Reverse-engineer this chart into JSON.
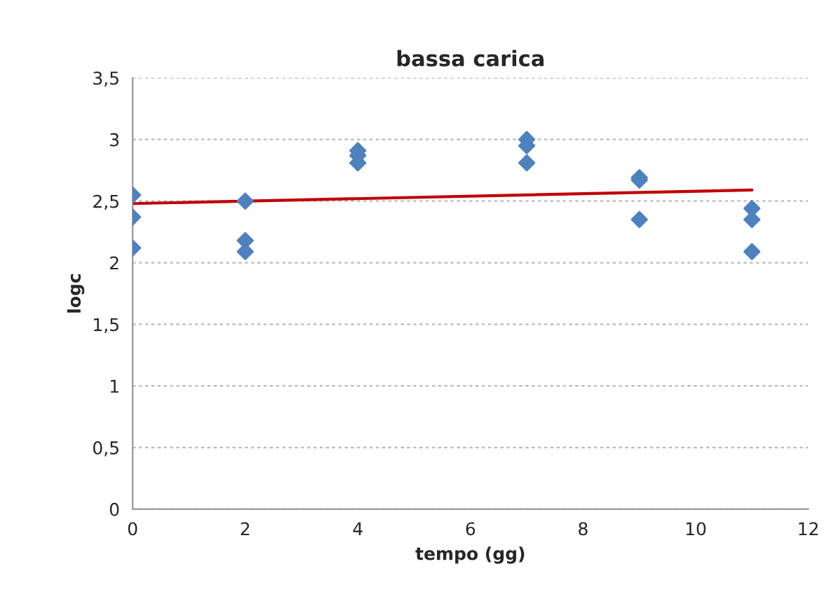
{
  "chart_data": {
    "type": "scatter",
    "title": "bassa carica",
    "xlabel": "tempo (gg)",
    "ylabel": "logc",
    "series": [
      {
        "marker": "diamond",
        "color": "#4f81bd",
        "x": [
          0,
          0,
          0,
          2,
          2,
          2,
          4,
          4,
          4,
          7,
          7,
          7,
          9,
          9,
          9,
          11,
          11,
          11
        ],
        "values": [
          2.55,
          2.37,
          2.12,
          2.5,
          2.18,
          2.09,
          2.91,
          2.87,
          2.81,
          3.0,
          2.95,
          2.81,
          2.69,
          2.67,
          2.35,
          2.44,
          2.35,
          2.09
        ]
      },
      {
        "type": "line",
        "color": "#c00000",
        "x": [
          0,
          11
        ],
        "values": [
          2.48,
          2.59
        ]
      }
    ],
    "grid": "y",
    "xlim": [
      0,
      12
    ],
    "xticks": [
      0,
      2,
      4,
      6,
      8,
      10,
      12
    ],
    "ylim": [
      0,
      3.5
    ],
    "yticks": [
      0,
      {
        "value": 0.5,
        "label": "0,5"
      },
      1,
      {
        "value": 1.5,
        "label": "1,5"
      },
      2,
      {
        "value": 2.5,
        "label": "2,5"
      },
      3,
      {
        "value": 3.5,
        "label": "3,5"
      }
    ]
  }
}
